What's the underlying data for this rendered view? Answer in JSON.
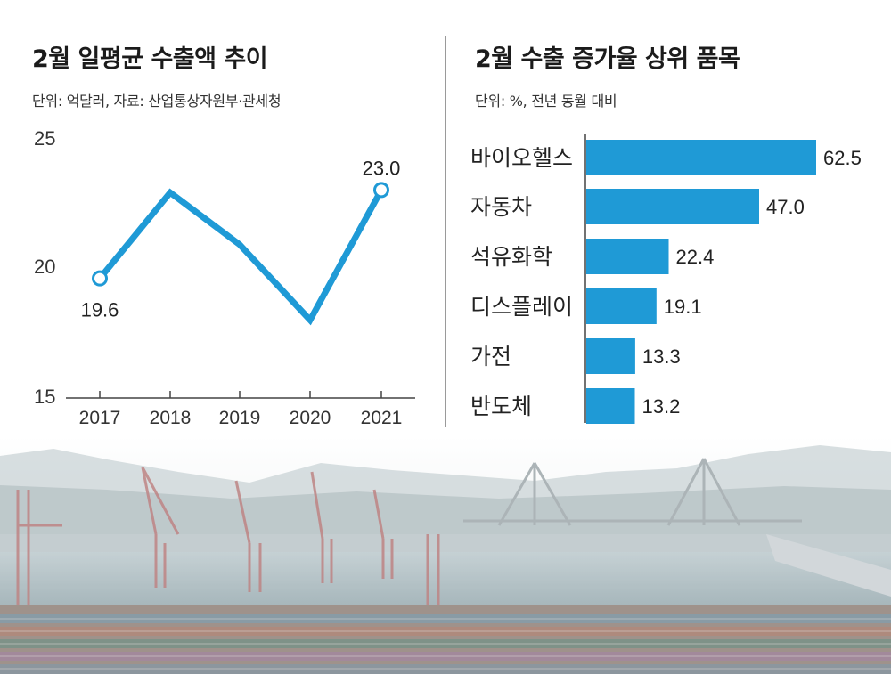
{
  "chart_data": [
    {
      "type": "line",
      "title": "2월 일평균 수출액 추이",
      "subtitle": "단위: 억달러, 자료: 산업통상자원부·관세청",
      "x": [
        "2017",
        "2018",
        "2019",
        "2020",
        "2021"
      ],
      "series": [
        {
          "values": [
            19.6,
            22.9,
            20.9,
            18.0,
            23.0
          ]
        }
      ],
      "data_labels": {
        "first": "19.6",
        "last": "23.0"
      },
      "ylim": [
        15,
        25
      ],
      "yticks": [
        "15",
        "20",
        "25"
      ],
      "grid": false,
      "color": "#1f9ad6"
    },
    {
      "type": "bar",
      "orientation": "horizontal",
      "title": "2월 수출 증가율 상위 품목",
      "subtitle": "단위: %, 전년 동월 대비",
      "categories": [
        "바이오헬스",
        "자동차",
        "석유화학",
        "디스플레이",
        "가전",
        "반도체"
      ],
      "values": [
        62.5,
        47.0,
        22.4,
        19.1,
        13.3,
        13.2
      ],
      "value_labels": [
        "62.5",
        "47.0",
        "22.4",
        "19.1",
        "13.3",
        "13.2"
      ],
      "xlim": [
        0,
        62.5
      ],
      "grid": false,
      "color": "#1f9ad6"
    }
  ],
  "background_photo": "container-port"
}
